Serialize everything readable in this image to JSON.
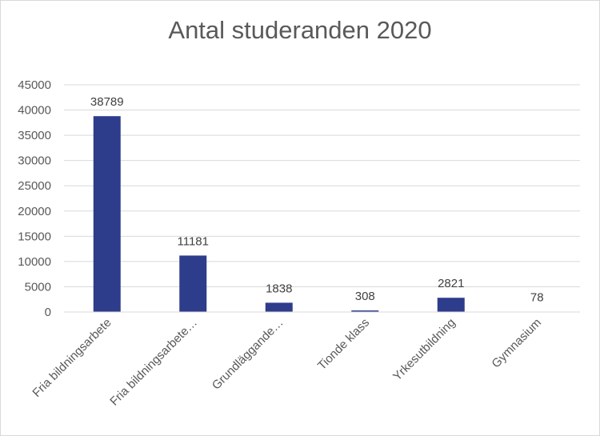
{
  "chart_data": {
    "type": "bar",
    "title": "Antal studeranden 2020",
    "categories": [
      "Fria bildningsarbete",
      "Fria bildningsarbete…",
      "Grundläggande…",
      "Tionde klass",
      "Yrkesutbildning",
      "Gymnasium"
    ],
    "values": [
      38789,
      11181,
      1838,
      308,
      2821,
      78
    ],
    "ylim": [
      0,
      45000
    ],
    "yticks": [
      0,
      5000,
      10000,
      15000,
      20000,
      25000,
      30000,
      35000,
      40000,
      45000
    ],
    "grid": true,
    "legend": "none",
    "colors": {
      "bar": "#2E3C8C",
      "grid": "#D9D9D9",
      "text": "#595959"
    }
  }
}
